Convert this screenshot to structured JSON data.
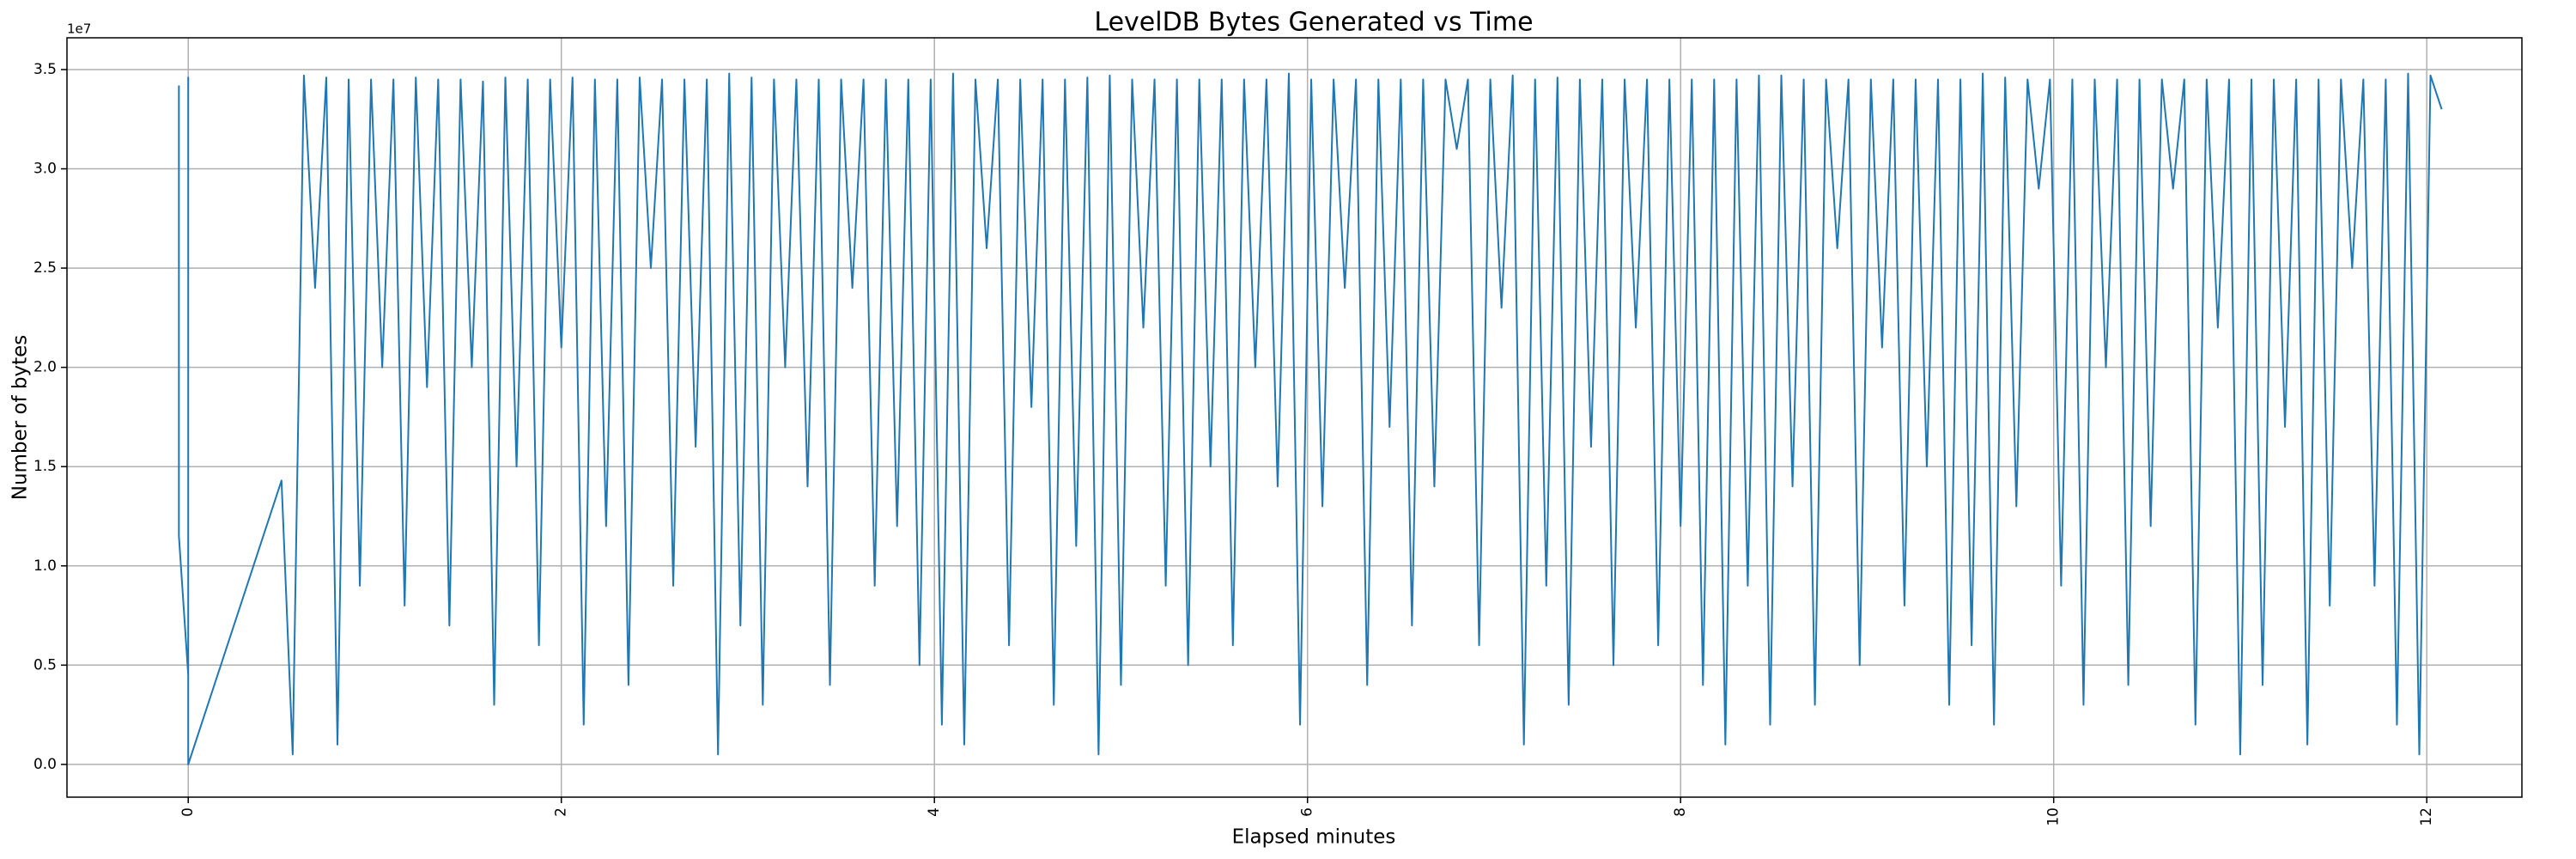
{
  "chart_data": {
    "type": "line",
    "title": "LevelDB Bytes Generated vs Time",
    "x_label": "Elapsed minutes",
    "y_label": "Number of bytes",
    "y_offset_label": "1e7",
    "color": "#1f77b4",
    "grid": true,
    "xlim": [
      -0.65,
      12.51
    ],
    "ylim": [
      -0.165,
      3.66
    ],
    "xticks": [
      0,
      2,
      4,
      6,
      8,
      10,
      12
    ],
    "yticks": [
      {
        "value": 0,
        "label": "0.0"
      },
      0.5,
      {
        "value": 1,
        "label": "1.0"
      },
      1.5,
      {
        "value": 2,
        "label": "2.0"
      },
      2.5,
      {
        "value": 3,
        "label": "3.0"
      },
      3.5
    ],
    "x": [
      -0.05,
      -0.05,
      0,
      0,
      0,
      0.5,
      0.56,
      0.62,
      0.68,
      0.74,
      0.8,
      0.86,
      0.92,
      0.98,
      1.04,
      1.1,
      1.16,
      1.22,
      1.28,
      1.34,
      1.4,
      1.46,
      1.52,
      1.58,
      1.64,
      1.7,
      1.76,
      1.82,
      1.88,
      1.94,
      2,
      2.06,
      2.12,
      2.18,
      2.24,
      2.3,
      2.36,
      2.42,
      2.48,
      2.54,
      2.6,
      2.66,
      2.72,
      2.78,
      2.84,
      2.9,
      2.96,
      3.02,
      3.08,
      3.14,
      3.2,
      3.26,
      3.32,
      3.38,
      3.44,
      3.5,
      3.56,
      3.62,
      3.68,
      3.74,
      3.8,
      3.86,
      3.92,
      3.98,
      4.04,
      4.1,
      4.16,
      4.22,
      4.28,
      4.34,
      4.4,
      4.46,
      4.52,
      4.58,
      4.64,
      4.7,
      4.76,
      4.82,
      4.88,
      4.94,
      5,
      5.06,
      5.12,
      5.18,
      5.24,
      5.3,
      5.36,
      5.42,
      5.48,
      5.54,
      5.6,
      5.66,
      5.72,
      5.78,
      5.84,
      5.9,
      5.96,
      6.02,
      6.08,
      6.14,
      6.2,
      6.26,
      6.32,
      6.38,
      6.44,
      6.5,
      6.56,
      6.62,
      6.68,
      6.74,
      6.8,
      6.86,
      6.92,
      6.98,
      7.04,
      7.1,
      7.16,
      7.22,
      7.28,
      7.34,
      7.4,
      7.46,
      7.52,
      7.58,
      7.64,
      7.7,
      7.76,
      7.82,
      7.88,
      7.94,
      8,
      8.06,
      8.12,
      8.18,
      8.24,
      8.3,
      8.36,
      8.42,
      8.48,
      8.54,
      8.6,
      8.66,
      8.72,
      8.78,
      8.84,
      8.9,
      8.96,
      9.02,
      9.08,
      9.14,
      9.2,
      9.26,
      9.32,
      9.38,
      9.44,
      9.5,
      9.56,
      9.62,
      9.68,
      9.74,
      9.8,
      9.86,
      9.92,
      9.98,
      10.04,
      10.1,
      10.16,
      10.22,
      10.28,
      10.34,
      10.4,
      10.46,
      10.52,
      10.58,
      10.64,
      10.7,
      10.76,
      10.82,
      10.88,
      10.94,
      11,
      11.06,
      11.12,
      11.18,
      11.24,
      11.3,
      11.36,
      11.42,
      11.48,
      11.54,
      11.6,
      11.66,
      11.72,
      11.78,
      11.84,
      11.9,
      11.96,
      12.02,
      12.08
    ],
    "values": [
      3.42,
      1.15,
      0.45,
      3.46,
      0,
      1.43,
      0.05,
      3.47,
      2.4,
      3.46,
      0.1,
      3.45,
      0.9,
      3.45,
      2.0,
      3.45,
      0.8,
      3.46,
      1.9,
      3.45,
      0.7,
      3.45,
      2.0,
      3.44,
      0.3,
      3.46,
      1.5,
      3.45,
      0.6,
      3.45,
      2.1,
      3.46,
      0.2,
      3.45,
      1.2,
      3.45,
      0.4,
      3.46,
      2.5,
      3.45,
      0.9,
      3.45,
      1.6,
      3.45,
      0.05,
      3.48,
      0.7,
      3.46,
      0.3,
      3.45,
      2.0,
      3.45,
      1.4,
      3.45,
      0.4,
      3.45,
      2.4,
      3.45,
      0.9,
      3.45,
      1.2,
      3.45,
      0.5,
      3.45,
      0.2,
      3.48,
      0.1,
      3.45,
      2.6,
      3.45,
      0.6,
      3.45,
      1.8,
      3.45,
      0.3,
      3.45,
      1.1,
      3.46,
      0.05,
      3.47,
      0.4,
      3.45,
      2.2,
      3.45,
      0.9,
      3.45,
      0.5,
      3.45,
      1.5,
      3.45,
      0.6,
      3.45,
      2.0,
      3.45,
      1.4,
      3.48,
      0.2,
      3.45,
      1.3,
      3.45,
      2.4,
      3.45,
      0.4,
      3.45,
      1.7,
      3.45,
      0.7,
      3.45,
      1.4,
      3.45,
      3.1,
      3.45,
      0.6,
      3.45,
      2.3,
      3.47,
      0.1,
      3.45,
      0.9,
      3.46,
      0.3,
      3.45,
      1.6,
      3.45,
      0.5,
      3.45,
      2.2,
      3.45,
      0.6,
      3.45,
      1.2,
      3.45,
      0.4,
      3.45,
      0.1,
      3.45,
      0.9,
      3.47,
      0.2,
      3.47,
      1.4,
      3.45,
      0.3,
      3.45,
      2.6,
      3.45,
      0.5,
      3.45,
      2.1,
      3.45,
      0.8,
      3.45,
      1.5,
      3.45,
      0.3,
      3.45,
      0.6,
      3.48,
      0.2,
      3.46,
      1.3,
      3.45,
      2.9,
      3.45,
      0.9,
      3.45,
      0.3,
      3.45,
      2.0,
      3.45,
      0.4,
      3.45,
      1.2,
      3.45,
      2.9,
      3.45,
      0.2,
      3.45,
      2.2,
      3.45,
      0.05,
      3.45,
      0.4,
      3.45,
      1.7,
      3.45,
      0.1,
      3.45,
      0.8,
      3.45,
      2.5,
      3.45,
      0.9,
      3.45,
      0.2,
      3.48,
      0.05,
      3.47,
      3.3
    ]
  }
}
